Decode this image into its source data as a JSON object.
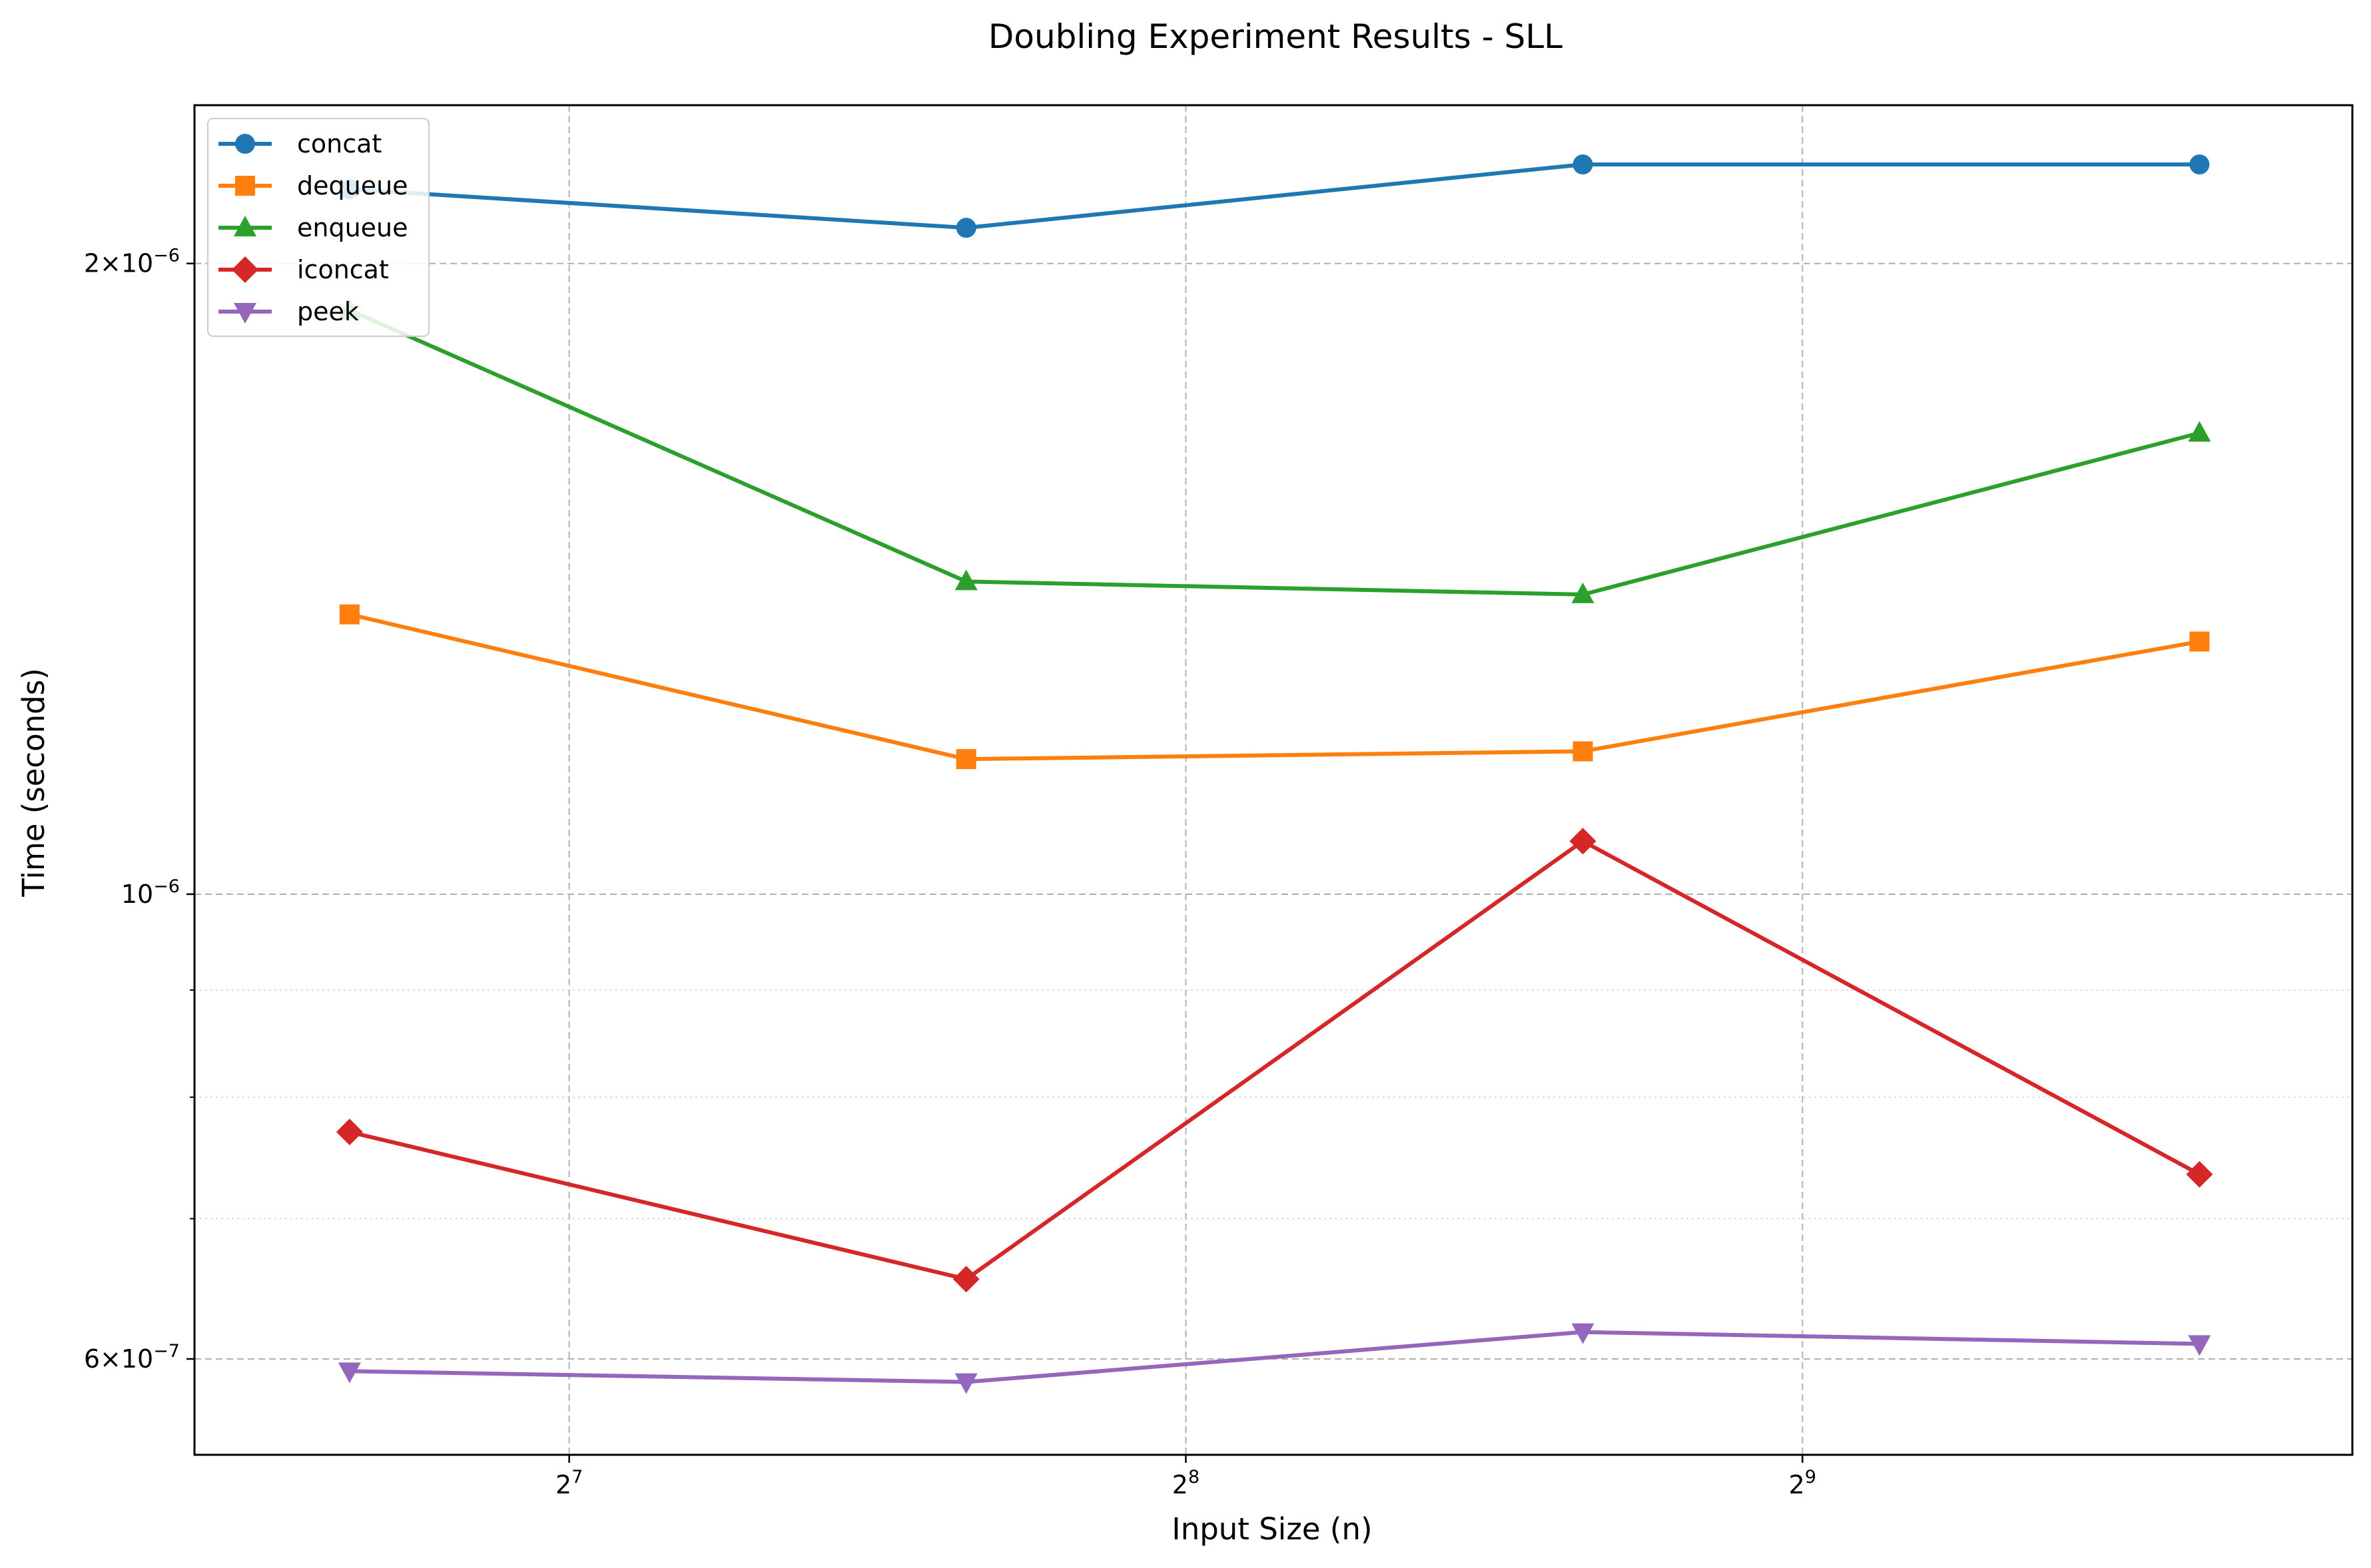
{
  "chart_data": {
    "type": "line",
    "title": "Doubling Experiment Results - SLL",
    "xlabel": "Input Size (n)",
    "ylabel": "Time (seconds)",
    "x_scale": "log2",
    "y_scale": "log",
    "x": [
      100,
      200,
      400,
      800
    ],
    "xlim": [
      84,
      950
    ],
    "ylim": [
      5.4e-07,
      2.38e-06
    ],
    "x_ticks": [
      {
        "value": 128,
        "base": "2",
        "exp": "7"
      },
      {
        "value": 256,
        "base": "2",
        "exp": "8"
      },
      {
        "value": 512,
        "base": "2",
        "exp": "9"
      }
    ],
    "y_ticks": [
      {
        "value": 2e-06,
        "mantissa": "2",
        "base": "10",
        "exp": "−6"
      },
      {
        "value": 1e-06,
        "mantissa": "",
        "base": "10",
        "exp": "−6"
      },
      {
        "value": 6e-07,
        "mantissa": "6",
        "base": "10",
        "exp": "−7"
      }
    ],
    "y_minor_ticks": [
      7e-07,
      8e-07,
      9e-07,
      3e-06
    ],
    "grid": {
      "major": true,
      "minor": true,
      "style": "dashed"
    },
    "legend": {
      "placement": "upper-left"
    },
    "series": [
      {
        "name": "concat",
        "color": "#1f77b4",
        "marker": "circle",
        "values": [
          2.17e-06,
          2.08e-06,
          2.23e-06,
          2.23e-06
        ]
      },
      {
        "name": "dequeue",
        "color": "#ff7f0e",
        "marker": "square",
        "values": [
          1.36e-06,
          1.16e-06,
          1.17e-06,
          1.32e-06
        ]
      },
      {
        "name": "enqueue",
        "color": "#2ca02c",
        "marker": "triangle-up",
        "values": [
          1.9e-06,
          1.41e-06,
          1.39e-06,
          1.66e-06
        ]
      },
      {
        "name": "iconcat",
        "color": "#d62728",
        "marker": "diamond",
        "values": [
          7.7e-07,
          6.55e-07,
          1.06e-06,
          7.35e-07
        ]
      },
      {
        "name": "peek",
        "color": "#9467bd",
        "marker": "triangle-down",
        "values": [
          5.92e-07,
          5.85e-07,
          6.18e-07,
          6.1e-07
        ]
      }
    ]
  }
}
